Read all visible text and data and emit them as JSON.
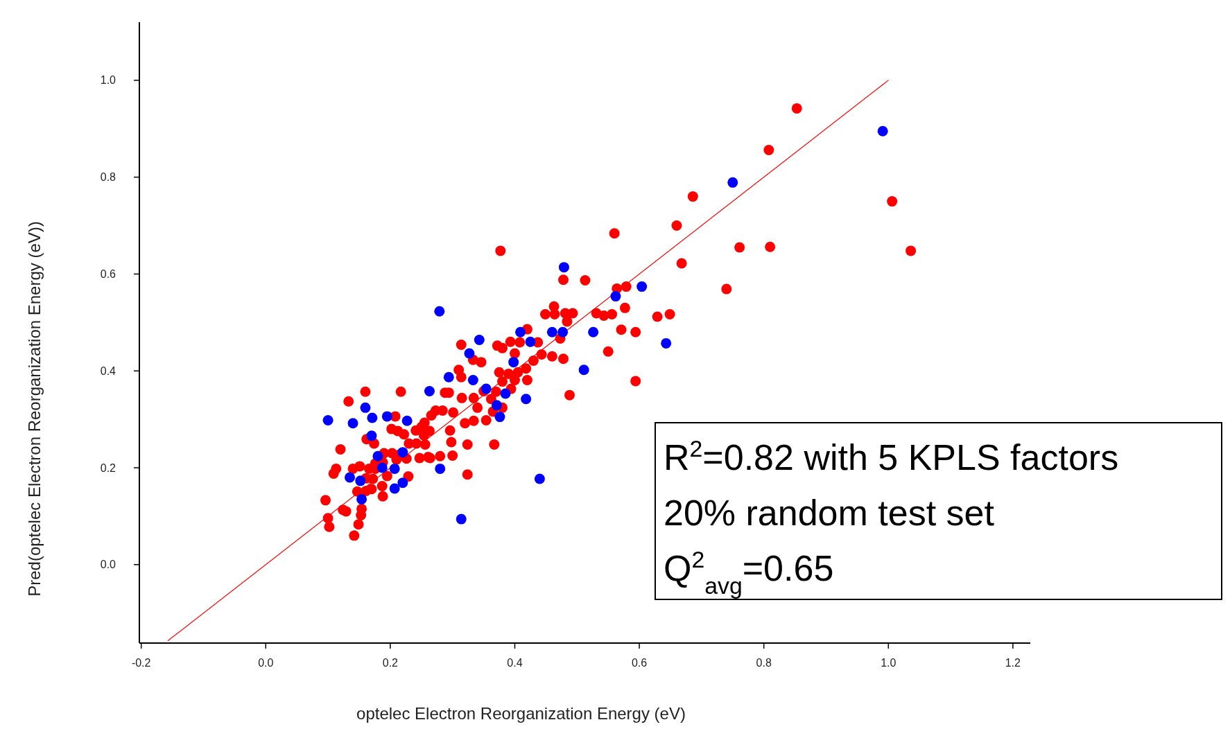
{
  "chart_data": {
    "type": "scatter",
    "xlabel": "optelec Electron Reorganization Energy (eV)",
    "ylabel": "Pred(optelec Electron Reorganization Energy (eV))",
    "xlim": [
      -0.203,
      1.228
    ],
    "ylim": [
      -0.162,
      1.12
    ],
    "xticks": [
      -0.2,
      {
        "value": 0,
        "label": "0.0"
      },
      0.2,
      0.4,
      0.6,
      0.8,
      {
        "value": 1,
        "label": "1.0"
      },
      1.2
    ],
    "yticks": [
      {
        "value": 0,
        "label": "0.0"
      },
      0.2,
      0.4,
      0.6,
      0.8,
      {
        "value": 1,
        "label": "1.0"
      }
    ],
    "grid": false,
    "annotations": [
      "R$^{2}$=0.82 with 5 KPLS factors",
      "20% random test set",
      "Q$^{2}$$_{avg}$=0.65"
    ],
    "series": [
      {
        "type": "line",
        "color": "#ff0000",
        "x": [
          -0.157,
          1.0
        ],
        "values": [
          -0.157,
          1.0
        ]
      },
      {
        "color": "#ff0000",
        "marker": "circle",
        "x": [
          0.853,
          0.808,
          0.686,
          0.66,
          0.56,
          1.006,
          1.036,
          0.761,
          0.81,
          0.74,
          0.668,
          0.377,
          0.478,
          0.513,
          0.579,
          0.564,
          0.629,
          0.649,
          0.594,
          0.571,
          0.594,
          0.55,
          0.577,
          0.556,
          0.543,
          0.531,
          0.488,
          0.493,
          0.481,
          0.484,
          0.463,
          0.449,
          0.464,
          0.473,
          0.46,
          0.478,
          0.443,
          0.437,
          0.42,
          0.408,
          0.393,
          0.372,
          0.38,
          0.4,
          0.43,
          0.418,
          0.405,
          0.39,
          0.375,
          0.38,
          0.4,
          0.42,
          0.394,
          0.37,
          0.362,
          0.38,
          0.365,
          0.35,
          0.346,
          0.333,
          0.314,
          0.31,
          0.314,
          0.315,
          0.334,
          0.34,
          0.334,
          0.354,
          0.32,
          0.301,
          0.288,
          0.294,
          0.284,
          0.273,
          0.266,
          0.255,
          0.25,
          0.263,
          0.254,
          0.241,
          0.217,
          0.202,
          0.208,
          0.212,
          0.222,
          0.23,
          0.242,
          0.256,
          0.261,
          0.247,
          0.28,
          0.298,
          0.296,
          0.3,
          0.324,
          0.367,
          0.324,
          0.264,
          0.215,
          0.203,
          0.19,
          0.21,
          0.226,
          0.229,
          0.195,
          0.176,
          0.166,
          0.151,
          0.14,
          0.161,
          0.172,
          0.187,
          0.17,
          0.161,
          0.147,
          0.188,
          0.154,
          0.153,
          0.149,
          0.142,
          0.16,
          0.133,
          0.162,
          0.174,
          0.12,
          0.113,
          0.109,
          0.096,
          0.124,
          0.129,
          0.1,
          0.102,
          0.176,
          0.188
        ],
        "values": [
          0.942,
          0.856,
          0.76,
          0.7,
          0.684,
          0.75,
          0.648,
          0.655,
          0.656,
          0.569,
          0.622,
          0.648,
          0.588,
          0.587,
          0.574,
          0.57,
          0.512,
          0.517,
          0.48,
          0.485,
          0.379,
          0.44,
          0.53,
          0.517,
          0.514,
          0.519,
          0.35,
          0.519,
          0.519,
          0.502,
          0.533,
          0.517,
          0.517,
          0.467,
          0.43,
          0.425,
          0.434,
          0.459,
          0.486,
          0.459,
          0.46,
          0.452,
          0.447,
          0.436,
          0.421,
          0.405,
          0.397,
          0.394,
          0.397,
          0.378,
          0.381,
          0.381,
          0.363,
          0.357,
          0.342,
          0.324,
          0.316,
          0.358,
          0.418,
          0.423,
          0.454,
          0.402,
          0.387,
          0.344,
          0.344,
          0.324,
          0.297,
          0.298,
          0.292,
          0.314,
          0.355,
          0.355,
          0.318,
          0.318,
          0.308,
          0.293,
          0.284,
          0.276,
          0.267,
          0.277,
          0.357,
          0.28,
          0.306,
          0.276,
          0.269,
          0.25,
          0.25,
          0.248,
          0.222,
          0.22,
          0.224,
          0.253,
          0.277,
          0.225,
          0.248,
          0.248,
          0.186,
          0.22,
          0.227,
          0.23,
          0.23,
          0.217,
          0.219,
          0.182,
          0.183,
          0.198,
          0.198,
          0.203,
          0.198,
          0.178,
          0.177,
          0.162,
          0.156,
          0.152,
          0.151,
          0.141,
          0.115,
          0.102,
          0.083,
          0.06,
          0.357,
          0.337,
          0.259,
          0.25,
          0.238,
          0.198,
          0.188,
          0.133,
          0.113,
          0.11,
          0.096,
          0.078,
          0.209,
          0.211
        ]
      },
      {
        "color": "#0000ff",
        "marker": "circle",
        "x": [
          0.1,
          0.16,
          0.14,
          0.171,
          0.195,
          0.227,
          0.17,
          0.135,
          0.152,
          0.154,
          0.18,
          0.187,
          0.207,
          0.22,
          0.22,
          0.207,
          0.279,
          0.263,
          0.294,
          0.28,
          0.314,
          0.327,
          0.343,
          0.333,
          0.354,
          0.371,
          0.376,
          0.385,
          0.398,
          0.409,
          0.425,
          0.418,
          0.44,
          0.46,
          0.477,
          0.479,
          0.511,
          0.526,
          0.562,
          0.604,
          0.643,
          0.75,
          0.991
        ],
        "values": [
          0.298,
          0.324,
          0.292,
          0.303,
          0.306,
          0.297,
          0.266,
          0.18,
          0.173,
          0.135,
          0.224,
          0.2,
          0.198,
          0.232,
          0.169,
          0.157,
          0.523,
          0.358,
          0.387,
          0.198,
          0.094,
          0.436,
          0.464,
          0.381,
          0.363,
          0.329,
          0.305,
          0.353,
          0.418,
          0.48,
          0.46,
          0.342,
          0.177,
          0.48,
          0.48,
          0.614,
          0.402,
          0.48,
          0.554,
          0.574,
          0.457,
          0.789,
          0.895
        ]
      }
    ]
  }
}
